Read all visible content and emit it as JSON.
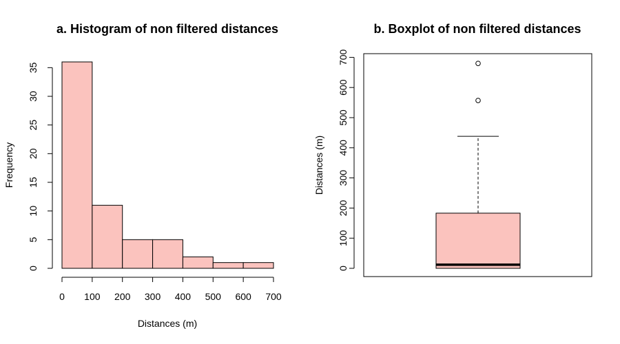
{
  "chart_data": [
    {
      "type": "bar",
      "title": "a. Histogram of non filtered distances",
      "xlabel": "Distances (m)",
      "ylabel": "Frequency",
      "bins": [
        {
          "from": 0,
          "to": 100,
          "count": 36
        },
        {
          "from": 100,
          "to": 200,
          "count": 11
        },
        {
          "from": 200,
          "to": 300,
          "count": 5
        },
        {
          "from": 300,
          "to": 400,
          "count": 5
        },
        {
          "from": 400,
          "to": 500,
          "count": 2
        },
        {
          "from": 500,
          "to": 600,
          "count": 1
        },
        {
          "from": 600,
          "to": 700,
          "count": 1
        }
      ],
      "x_ticks": [
        0,
        100,
        200,
        300,
        400,
        500,
        600,
        700
      ],
      "y_ticks": [
        0,
        5,
        10,
        15,
        20,
        25,
        30,
        35
      ],
      "xlim": [
        0,
        700
      ],
      "ylim": [
        0,
        36
      ],
      "fill_color": "#FBC3BE",
      "grid": false
    },
    {
      "type": "box",
      "title": "b. Boxplot of non filtered distances",
      "ylabel": "Distances (m)",
      "y_ticks": [
        0,
        100,
        200,
        300,
        400,
        500,
        600,
        700
      ],
      "ylim": [
        0,
        710
      ],
      "box": {
        "min": 0,
        "q1": 0,
        "median": 12,
        "q3": 183,
        "upper_whisker": 438
      },
      "outliers": [
        557,
        680
      ],
      "fill_color": "#FBC3BE",
      "grid": false
    }
  ]
}
